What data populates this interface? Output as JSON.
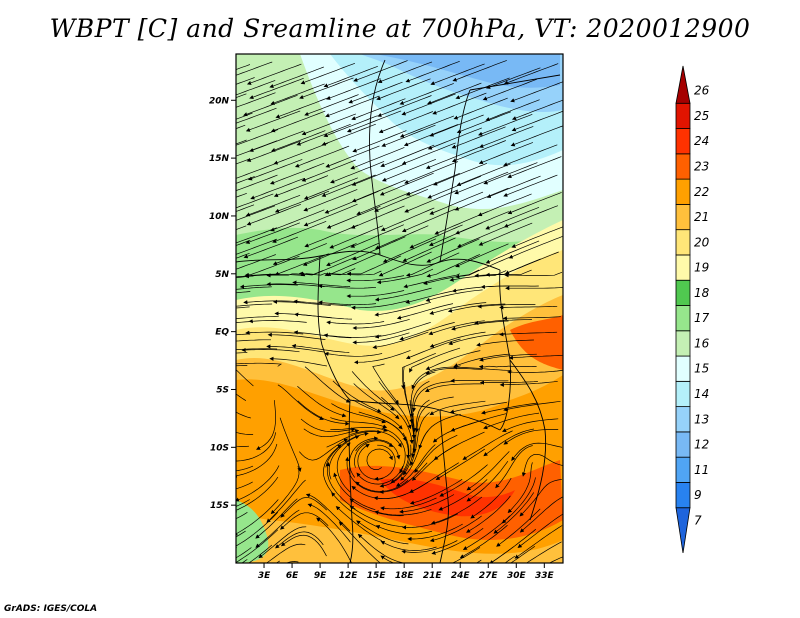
{
  "title": "WBPT [C] and Sreamline at 700hPa, VT: 2020012900",
  "credit": "GrADS: IGES/COLA",
  "map": {
    "lon_range": [
      0,
      35
    ],
    "lat_range": [
      -20,
      24
    ],
    "lat_ticks": [
      {
        "value": 20,
        "label": "20N"
      },
      {
        "value": 15,
        "label": "15N"
      },
      {
        "value": 10,
        "label": "10N"
      },
      {
        "value": 5,
        "label": "5N"
      },
      {
        "value": 0,
        "label": "EQ"
      },
      {
        "value": -5,
        "label": "5S"
      },
      {
        "value": -10,
        "label": "10S"
      },
      {
        "value": -15,
        "label": "15S"
      }
    ],
    "lon_ticks": [
      {
        "value": 3,
        "label": "3E"
      },
      {
        "value": 6,
        "label": "6E"
      },
      {
        "value": 9,
        "label": "9E"
      },
      {
        "value": 12,
        "label": "12E"
      },
      {
        "value": 15,
        "label": "15E"
      },
      {
        "value": 18,
        "label": "18E"
      },
      {
        "value": 21,
        "label": "21E"
      },
      {
        "value": 24,
        "label": "24E"
      },
      {
        "value": 27,
        "label": "27E"
      },
      {
        "value": 30,
        "label": "30E"
      },
      {
        "value": 33,
        "label": "33E"
      }
    ]
  },
  "colorbar": {
    "levels": [
      "7",
      "9",
      "11",
      "12",
      "13",
      "14",
      "15",
      "16",
      "17",
      "18",
      "19",
      "20",
      "21",
      "22",
      "23",
      "24",
      "25",
      "26"
    ],
    "colors": [
      "#1e64dc",
      "#2882f0",
      "#50a5f5",
      "#78b9f5",
      "#96d2fa",
      "#b4f0fa",
      "#e1ffff",
      "#c4f0b4",
      "#96e68c",
      "#50c850",
      "#fffaaa",
      "#ffe678",
      "#ffc03c",
      "#ffa000",
      "#ff6000",
      "#ff3200",
      "#e11400",
      "#a50000"
    ]
  }
}
